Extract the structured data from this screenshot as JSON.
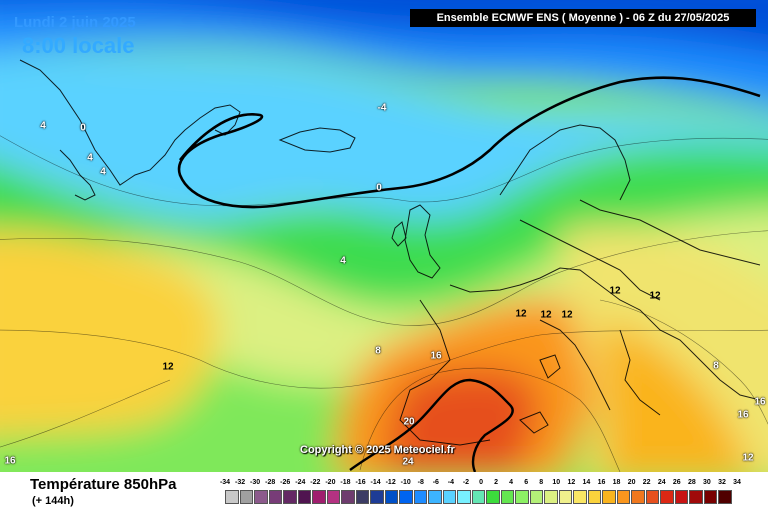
{
  "header": {
    "date": "Lundi 2 juin 2025",
    "time": "8:00 locale",
    "model_run": "Ensemble ECMWF ENS  ( Moyenne )  -  06 Z du 27/05/2025"
  },
  "copyright": "Copyright © 2025 Meteociel.fr",
  "footer": {
    "variable": "Température 850hPa",
    "lead": "(+ 144h)"
  },
  "scale": {
    "values": [
      "-34",
      "-32",
      "-30",
      "-28",
      "-26",
      "-24",
      "-22",
      "-20",
      "-18",
      "-16",
      "-14",
      "-12",
      "-10",
      "-8",
      "-6",
      "-4",
      "-2",
      "0",
      "2",
      "4",
      "6",
      "8",
      "10",
      "12",
      "14",
      "16",
      "18",
      "20",
      "22",
      "24",
      "26",
      "28",
      "30",
      "32",
      "34"
    ],
    "colors": [
      "#c8c8c8",
      "#a0a0a0",
      "#8c5a8c",
      "#783c78",
      "#642864",
      "#501450",
      "#a01e6e",
      "#b43282",
      "#6e3c6e",
      "#3c3c64",
      "#1e3c96",
      "#0050c8",
      "#0064f0",
      "#1e8cff",
      "#3cb4ff",
      "#5ad2ff",
      "#78f0ff",
      "#64e6b4",
      "#3cdc3c",
      "#64e650",
      "#8cf064",
      "#b4f078",
      "#dcf082",
      "#f0f08c",
      "#fae664",
      "#fad23c",
      "#fab41e",
      "#fa961e",
      "#f0781e",
      "#e6501e",
      "#dc2814",
      "#c81414",
      "#a00a0a",
      "#780000",
      "#500000"
    ]
  },
  "isotherm_labels": [
    {
      "text": "4",
      "color": "#ffffff"
    },
    {
      "text": "0",
      "color": "#ffffff"
    },
    {
      "text": "4",
      "color": "#ffffff"
    },
    {
      "text": "4",
      "color": "#ffffff"
    },
    {
      "text": "-4",
      "color": "#ffffff"
    },
    {
      "text": "0",
      "color": "#ffffff"
    },
    {
      "text": "4",
      "color": "#ffffff"
    },
    {
      "text": "8",
      "color": "#ffffff"
    },
    {
      "text": "12",
      "color": "#000000"
    },
    {
      "text": "12",
      "color": "#000000"
    },
    {
      "text": "12",
      "color": "#000000"
    },
    {
      "text": "12",
      "color": "#000000"
    },
    {
      "text": "12",
      "color": "#000000"
    },
    {
      "text": "12",
      "color": "#000000"
    },
    {
      "text": "16",
      "color": "#ffffff"
    },
    {
      "text": "8",
      "color": "#ffffff"
    },
    {
      "text": "20",
      "color": "#ffffff"
    },
    {
      "text": "24",
      "color": "#ffffff"
    },
    {
      "text": "16",
      "color": "#ffffff"
    },
    {
      "text": "16",
      "color": "#ffffff"
    },
    {
      "text": "16",
      "color": "#ffffff"
    },
    {
      "text": "12",
      "color": "#ffffff"
    }
  ]
}
